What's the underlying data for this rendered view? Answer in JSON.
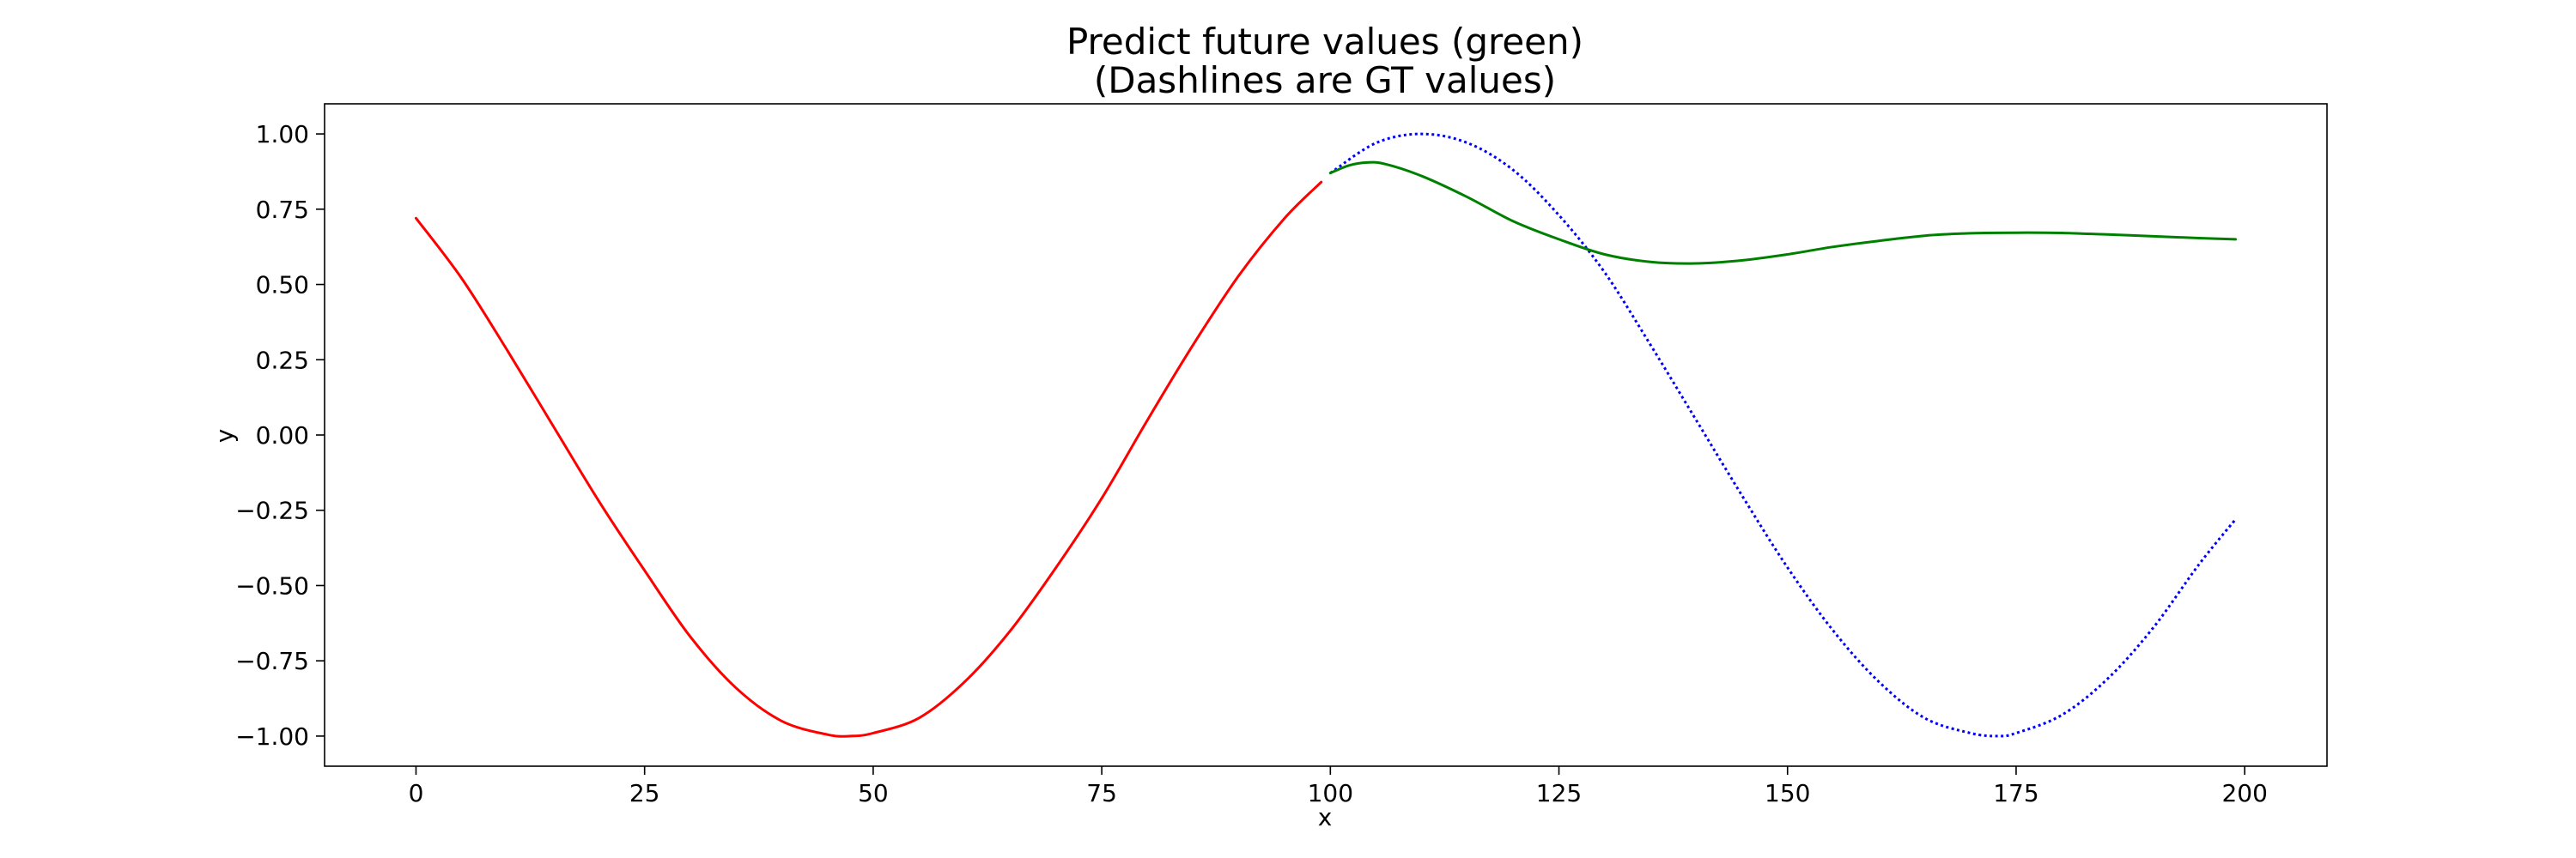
{
  "chart_data": {
    "type": "line",
    "title": "Predict future values (green)",
    "subtitle": "(Dashlines are GT values)",
    "xlabel": "x",
    "ylabel": "y",
    "xlim": [
      -10,
      209
    ],
    "ylim": [
      -1.1,
      1.1
    ],
    "x_ticks": [
      "0",
      "25",
      "50",
      "75",
      "100",
      "125",
      "150",
      "175",
      "200"
    ],
    "y_ticks": [
      "1.00",
      "0.75",
      "0.50",
      "0.25",
      "0.00",
      "−0.25",
      "−0.50",
      "−0.75",
      "−1.00"
    ],
    "grid": false,
    "series": [
      {
        "color": "#ff0000",
        "style": "solid",
        "x": [
          0,
          5,
          10,
          15,
          20,
          25,
          30,
          35,
          40,
          45,
          47.5,
          50,
          55,
          60,
          65,
          70,
          75,
          80,
          85,
          90,
          95,
          99
        ],
        "y": [
          0.72,
          0.52,
          0.28,
          0.03,
          -0.22,
          -0.45,
          -0.67,
          -0.84,
          -0.95,
          -0.995,
          -1.0,
          -0.99,
          -0.94,
          -0.82,
          -0.65,
          -0.44,
          -0.21,
          0.05,
          0.3,
          0.53,
          0.72,
          0.84
        ]
      },
      {
        "color": "#0000ff",
        "style": "dotted",
        "x": [
          100,
          105,
          110,
          115,
          120,
          125,
          130,
          135,
          140,
          145,
          150,
          155,
          160,
          165,
          170,
          173,
          175,
          180,
          185,
          190,
          195,
          199
        ],
        "y": [
          0.87,
          0.97,
          1.0,
          0.97,
          0.88,
          0.73,
          0.54,
          0.3,
          0.05,
          -0.2,
          -0.44,
          -0.65,
          -0.82,
          -0.94,
          -0.99,
          -1.0,
          -0.99,
          -0.93,
          -0.81,
          -0.64,
          -0.43,
          -0.28
        ]
      },
      {
        "color": "#008000",
        "style": "solid",
        "x": [
          100,
          102,
          104,
          106,
          110,
          115,
          120,
          125,
          130,
          135,
          140,
          145,
          150,
          155,
          160,
          165,
          170,
          175,
          180,
          185,
          190,
          195,
          199
        ],
        "y": [
          0.87,
          0.895,
          0.905,
          0.9,
          0.86,
          0.79,
          0.71,
          0.65,
          0.6,
          0.575,
          0.57,
          0.58,
          0.6,
          0.625,
          0.645,
          0.662,
          0.67,
          0.672,
          0.671,
          0.666,
          0.66,
          0.654,
          0.65
        ]
      }
    ]
  }
}
